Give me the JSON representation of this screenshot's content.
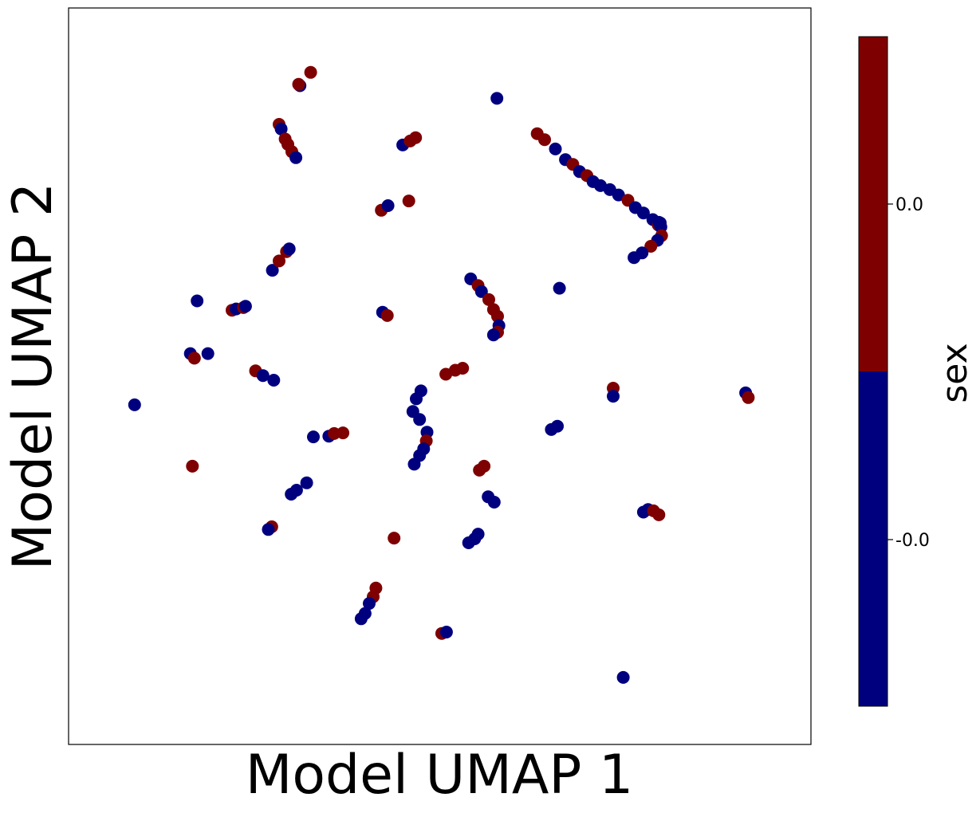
{
  "chart_data": {
    "type": "scatter",
    "title": "",
    "xlabel": "Model UMAP 1",
    "ylabel": "Model UMAP 2",
    "xlim": [
      0,
      100
    ],
    "ylim": [
      0,
      100
    ],
    "xticks_visible": false,
    "yticks_visible": false,
    "grid": false,
    "colors": {
      "navy": "#00007f",
      "maroon": "#7f0000"
    },
    "colorbar": {
      "label": "sex",
      "ticks": [
        "0.0",
        "-0.0"
      ],
      "segments": [
        {
          "name": "upper",
          "color": "#7f0000"
        },
        {
          "name": "lower",
          "color": "#00007f"
        }
      ]
    },
    "points": [
      [
        30.8,
        95.6,
        1
      ],
      [
        29.2,
        93.6,
        0
      ],
      [
        29.0,
        93.8,
        1
      ],
      [
        58.5,
        91.7,
        0
      ],
      [
        26.1,
        87.8,
        1
      ],
      [
        26.4,
        87.1,
        0
      ],
      [
        27.0,
        85.6,
        1
      ],
      [
        27.4,
        84.8,
        1
      ],
      [
        28.0,
        83.7,
        1
      ],
      [
        28.6,
        82.8,
        0
      ],
      [
        44.5,
        84.7,
        0
      ],
      [
        45.6,
        85.3,
        1
      ],
      [
        46.4,
        85.8,
        1
      ],
      [
        64.5,
        86.4,
        1
      ],
      [
        65.6,
        85.5,
        1
      ],
      [
        67.2,
        84.1,
        0
      ],
      [
        68.7,
        82.5,
        0
      ],
      [
        69.8,
        81.8,
        1
      ],
      [
        70.8,
        80.7,
        0
      ],
      [
        71.9,
        80.1,
        1
      ],
      [
        72.8,
        79.2,
        0
      ],
      [
        73.9,
        78.6,
        0
      ],
      [
        75.3,
        78.0,
        0
      ],
      [
        76.6,
        77.2,
        0
      ],
      [
        78.0,
        76.4,
        1
      ],
      [
        79.1,
        75.3,
        0
      ],
      [
        80.3,
        74.5,
        0
      ],
      [
        81.7,
        73.5,
        0
      ],
      [
        82.5,
        72.7,
        1
      ],
      [
        82.8,
        73.0,
        0
      ],
      [
        41.3,
        74.9,
        1
      ],
      [
        42.3,
        75.6,
        0
      ],
      [
        45.4,
        76.3,
        1
      ],
      [
        82.6,
        73.1,
        0
      ],
      [
        82.9,
        72.4,
        0
      ],
      [
        83.0,
        71.1,
        1
      ],
      [
        82.4,
        70.4,
        0
      ],
      [
        81.4,
        69.5,
        1
      ],
      [
        80.1,
        68.5,
        0
      ],
      [
        78.9,
        67.8,
        0
      ],
      [
        25.1,
        65.9,
        0
      ],
      [
        26.1,
        67.3,
        1
      ],
      [
        27.2,
        68.7,
        1
      ],
      [
        27.6,
        69.1,
        0
      ],
      [
        13.9,
        61.3,
        0
      ],
      [
        19.1,
        59.9,
        1
      ],
      [
        19.7,
        60.1,
        0
      ],
      [
        20.8,
        60.3,
        1
      ],
      [
        21.1,
        60.5,
        0
      ],
      [
        67.8,
        63.2,
        0
      ],
      [
        54.6,
        64.6,
        0
      ],
      [
        55.7,
        63.6,
        1
      ],
      [
        56.2,
        62.7,
        0
      ],
      [
        57.3,
        61.5,
        1
      ],
      [
        58.0,
        60.0,
        1
      ],
      [
        58.6,
        59.0,
        1
      ],
      [
        58.8,
        57.6,
        0
      ],
      [
        58.6,
        56.6,
        1
      ],
      [
        58.0,
        56.2,
        0
      ],
      [
        41.5,
        59.6,
        0
      ],
      [
        42.2,
        59.1,
        1
      ],
      [
        12.9,
        53.4,
        0
      ],
      [
        13.5,
        52.7,
        1
      ],
      [
        15.5,
        53.4,
        0
      ],
      [
        22.6,
        50.8,
        1
      ],
      [
        23.7,
        50.1,
        0
      ],
      [
        25.3,
        49.4,
        0
      ],
      [
        50.9,
        50.3,
        1
      ],
      [
        52.3,
        50.9,
        1
      ],
      [
        53.4,
        51.2,
        1
      ],
      [
        4.6,
        45.7,
        0
      ],
      [
        75.8,
        48.2,
        1
      ],
      [
        75.8,
        47.0,
        0
      ],
      [
        95.5,
        47.5,
        0
      ],
      [
        95.9,
        46.8,
        1
      ],
      [
        47.2,
        47.8,
        0
      ],
      [
        46.5,
        46.6,
        0
      ],
      [
        46.0,
        44.7,
        0
      ],
      [
        47.0,
        43.5,
        0
      ],
      [
        48.1,
        41.6,
        0
      ],
      [
        48.0,
        40.3,
        1
      ],
      [
        47.6,
        39.1,
        0
      ],
      [
        47.0,
        38.1,
        0
      ],
      [
        46.2,
        36.8,
        0
      ],
      [
        67.5,
        42.5,
        0
      ],
      [
        66.6,
        42.0,
        0
      ],
      [
        31.2,
        40.9,
        0
      ],
      [
        33.5,
        41.0,
        0
      ],
      [
        34.3,
        41.4,
        1
      ],
      [
        35.6,
        41.5,
        1
      ],
      [
        13.2,
        36.5,
        1
      ],
      [
        55.9,
        35.9,
        1
      ],
      [
        56.6,
        36.5,
        1
      ],
      [
        28.7,
        32.9,
        0
      ],
      [
        27.9,
        32.3,
        0
      ],
      [
        30.2,
        34.0,
        0
      ],
      [
        57.2,
        31.9,
        0
      ],
      [
        58.1,
        31.1,
        0
      ],
      [
        80.3,
        29.6,
        0
      ],
      [
        81.0,
        30.0,
        0
      ],
      [
        81.8,
        29.8,
        1
      ],
      [
        82.6,
        29.2,
        1
      ],
      [
        25.0,
        27.4,
        1
      ],
      [
        24.5,
        27.0,
        0
      ],
      [
        43.2,
        25.7,
        1
      ],
      [
        54.3,
        25.0,
        0
      ],
      [
        55.2,
        25.6,
        0
      ],
      [
        55.7,
        26.3,
        0
      ],
      [
        40.5,
        18.2,
        1
      ],
      [
        40.1,
        16.9,
        1
      ],
      [
        39.5,
        15.9,
        0
      ],
      [
        38.9,
        14.4,
        0
      ],
      [
        38.3,
        13.6,
        0
      ],
      [
        50.3,
        11.4,
        1
      ],
      [
        51.0,
        11.6,
        0
      ],
      [
        77.3,
        4.8,
        0
      ]
    ]
  }
}
